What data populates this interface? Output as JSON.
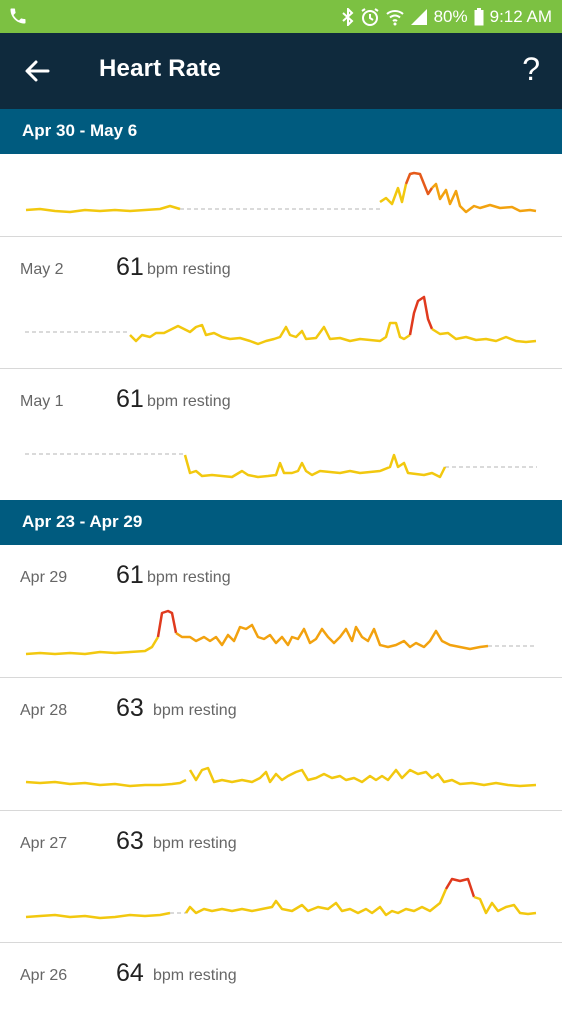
{
  "status_bar": {
    "battery": "80%",
    "time": "9:12 AM",
    "icons": [
      "phone-icon",
      "bluetooth-icon",
      "alarm-icon",
      "wifi-icon",
      "signal-icon",
      "battery-icon"
    ]
  },
  "app_bar": {
    "title": "Heart Rate",
    "back_icon": "arrow-left-icon",
    "help_label": "?"
  },
  "weeks": [
    {
      "label": "Apr 30 - May 6"
    },
    {
      "label": "Apr 23 - Apr 29"
    }
  ],
  "days": [
    {
      "date": "May 2",
      "bpm": "61",
      "unit": "bpm resting"
    },
    {
      "date": "May 1",
      "bpm": "61",
      "unit": "bpm resting"
    },
    {
      "date": "Apr 29",
      "bpm": "61",
      "unit": "bpm resting"
    },
    {
      "date": "Apr 28",
      "bpm": "63",
      "unit": "bpm resting"
    },
    {
      "date": "Apr 27",
      "bpm": "63",
      "unit": "bpm resting"
    },
    {
      "date": "Apr 26",
      "bpm": "64",
      "unit": "bpm resting"
    }
  ],
  "colors": {
    "status_bar": "#7cc142",
    "app_bar": "#0f2a3d",
    "week_header": "#005b7f",
    "line_low": "#f2c80f",
    "line_high": "#e03a1e",
    "gap_dash": "#b5b5b5"
  }
}
